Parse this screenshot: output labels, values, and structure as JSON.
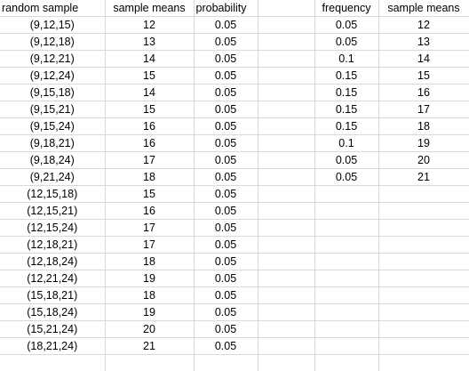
{
  "headers": {
    "random_sample": "random sample",
    "sample_means": "sample means",
    "probability": "probability",
    "frequency": "frequency",
    "sample_means_2": "sample means"
  },
  "left_rows": [
    {
      "sample": "(9,12,15)",
      "mean": "12",
      "prob": "0.05"
    },
    {
      "sample": "(9,12,18)",
      "mean": "13",
      "prob": "0.05"
    },
    {
      "sample": "(9,12,21)",
      "mean": "14",
      "prob": "0.05"
    },
    {
      "sample": "(9,12,24)",
      "mean": "15",
      "prob": "0.05"
    },
    {
      "sample": "(9,15,18)",
      "mean": "14",
      "prob": "0.05"
    },
    {
      "sample": "(9,15,21)",
      "mean": "15",
      "prob": "0.05"
    },
    {
      "sample": "(9,15,24)",
      "mean": "16",
      "prob": "0.05"
    },
    {
      "sample": "(9,18,21)",
      "mean": "16",
      "prob": "0.05"
    },
    {
      "sample": "(9,18,24)",
      "mean": "17",
      "prob": "0.05"
    },
    {
      "sample": "(9,21,24)",
      "mean": "18",
      "prob": "0.05"
    },
    {
      "sample": "(12,15,18)",
      "mean": "15",
      "prob": "0.05"
    },
    {
      "sample": "(12,15,21)",
      "mean": "16",
      "prob": "0.05"
    },
    {
      "sample": "(12,15,24)",
      "mean": "17",
      "prob": "0.05"
    },
    {
      "sample": "(12,18,21)",
      "mean": "17",
      "prob": "0.05"
    },
    {
      "sample": "(12,18,24)",
      "mean": "18",
      "prob": "0.05"
    },
    {
      "sample": "(12,21,24)",
      "mean": "19",
      "prob": "0.05"
    },
    {
      "sample": "(15,18,21)",
      "mean": "18",
      "prob": "0.05"
    },
    {
      "sample": "(15,18,24)",
      "mean": "19",
      "prob": "0.05"
    },
    {
      "sample": "(15,21,24)",
      "mean": "20",
      "prob": "0.05"
    },
    {
      "sample": "(18,21,24)",
      "mean": "21",
      "prob": "0.05"
    }
  ],
  "right_rows": [
    {
      "frequency": "0.05",
      "mean": "12"
    },
    {
      "frequency": "0.05",
      "mean": "13"
    },
    {
      "frequency": "0.1",
      "mean": "14"
    },
    {
      "frequency": "0.15",
      "mean": "15"
    },
    {
      "frequency": "0.15",
      "mean": "16"
    },
    {
      "frequency": "0.15",
      "mean": "17"
    },
    {
      "frequency": "0.15",
      "mean": "18"
    },
    {
      "frequency": "0.1",
      "mean": "19"
    },
    {
      "frequency": "0.05",
      "mean": "20"
    },
    {
      "frequency": "0.05",
      "mean": "21"
    }
  ]
}
